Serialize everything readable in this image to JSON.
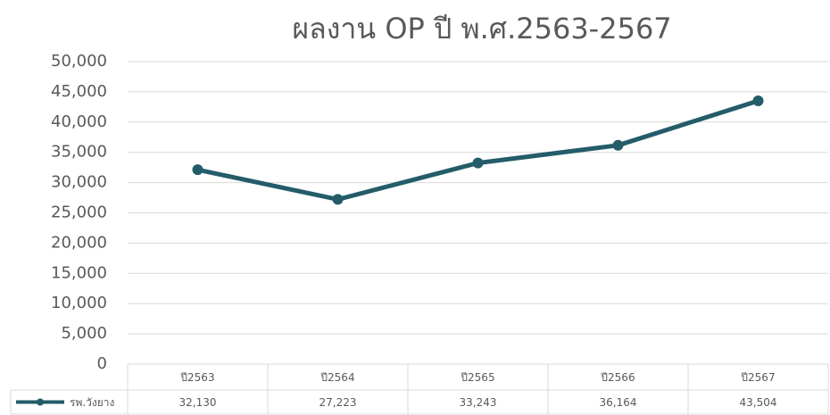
{
  "chart_data": {
    "type": "line",
    "title": "ผลงาน OP ปี พ.ศ.2563-2567",
    "categories": [
      "ปี2563",
      "ปี2564",
      "ปี2565",
      "ปี2566",
      "ปี2567"
    ],
    "series": [
      {
        "name": "รพ.วังยาง",
        "color": "#245c69",
        "values": [
          32130,
          27223,
          33243,
          36164,
          43504
        ],
        "value_labels": [
          "32,130",
          "27,223",
          "33,243",
          "36,164",
          "43,504"
        ]
      }
    ],
    "ylim": [
      0,
      50000
    ],
    "yticks": [
      0,
      {
        "value": 5000,
        "label": "5,000"
      },
      {
        "value": 10000,
        "label": "10,000"
      },
      {
        "value": 15000,
        "label": "15,000"
      },
      {
        "value": 20000,
        "label": "20,000"
      },
      {
        "value": 25000,
        "label": "25,000"
      },
      {
        "value": 30000,
        "label": "30,000"
      },
      {
        "value": 35000,
        "label": "35,000"
      },
      {
        "value": 40000,
        "label": "40,000"
      },
      {
        "value": 45000,
        "label": "45,000"
      },
      {
        "value": 50000,
        "label": "50,000"
      }
    ],
    "grid": true
  }
}
